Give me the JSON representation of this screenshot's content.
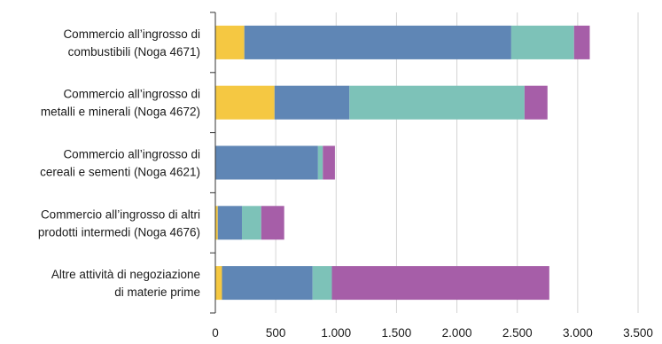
{
  "chart_data": {
    "type": "bar",
    "orientation": "horizontal",
    "stacked": true,
    "categories": [
      [
        "Commercio all’ingrosso di",
        "combustibili (Noga 4671)"
      ],
      [
        "Commercio all’ingrosso di",
        "metalli e minerali (Noga 4672)"
      ],
      [
        "Commercio all’ingrosso di",
        "cereali e sementi (Noga 4621)"
      ],
      [
        "Commercio all’ingrosso di altri",
        "prodotti intermedi (Noga 4676)"
      ],
      [
        "Altre attività di negoziazione",
        "di materie prime"
      ]
    ],
    "series": [
      {
        "color": "#f5c842",
        "values": [
          240,
          490,
          0,
          20,
          55
        ]
      },
      {
        "color": "#5f86b5",
        "values": [
          2210,
          620,
          850,
          200,
          750
        ]
      },
      {
        "color": "#7dc2b8",
        "values": [
          520,
          1450,
          40,
          160,
          160
        ]
      },
      {
        "color": "#a65ea8",
        "values": [
          130,
          190,
          100,
          190,
          1800
        ]
      }
    ],
    "x_ticks": [
      "0",
      "500",
      "1.000",
      "1.500",
      "2.000",
      "2.500",
      "3.000",
      "3.500"
    ],
    "xlim": [
      0,
      3500
    ],
    "grid": true,
    "title": "",
    "xlabel": "",
    "ylabel": ""
  }
}
